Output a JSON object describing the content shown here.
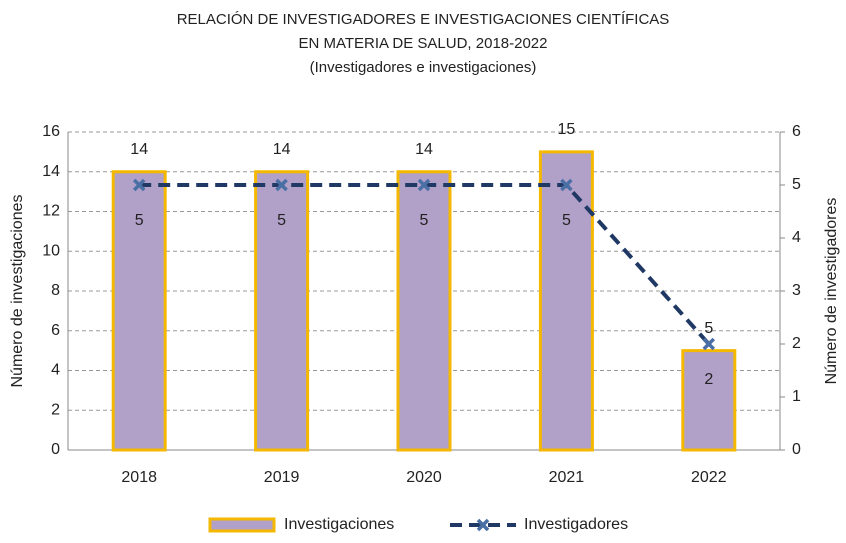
{
  "chart_data": {
    "type": "bar",
    "title": [
      "RELACIÓN DE INVESTIGADORES E INVESTIGACIONES CIENTÍFICAS",
      "EN MATERIA DE SALUD, 2018-2022"
    ],
    "subtitle": "(Investigadores e investigaciones)",
    "y_label": "Número de investigaciones",
    "y2_label": "Número de investigadores",
    "categories": [
      "2018",
      "2019",
      "2020",
      "2021",
      "2022"
    ],
    "series": [
      {
        "name": "Investigaciones",
        "type": "bar",
        "color": "#b1a0c7",
        "edge_color": "#f5b800",
        "values": [
          14,
          14,
          14,
          15,
          5
        ]
      },
      {
        "name": "Investigadores",
        "type": "line",
        "axis": "y2",
        "color": "#1f3864",
        "marker_color": "#4a6fa5",
        "values": [
          5,
          5,
          5,
          5,
          2
        ]
      }
    ],
    "ylim": [
      0,
      16
    ],
    "yticks": [
      0,
      2,
      4,
      6,
      8,
      10,
      12,
      14,
      16
    ],
    "y2lim": [
      0,
      6
    ],
    "y2ticks": [
      0,
      1,
      2,
      3,
      4,
      5,
      6
    ],
    "grid": true,
    "legend": "bottom"
  }
}
